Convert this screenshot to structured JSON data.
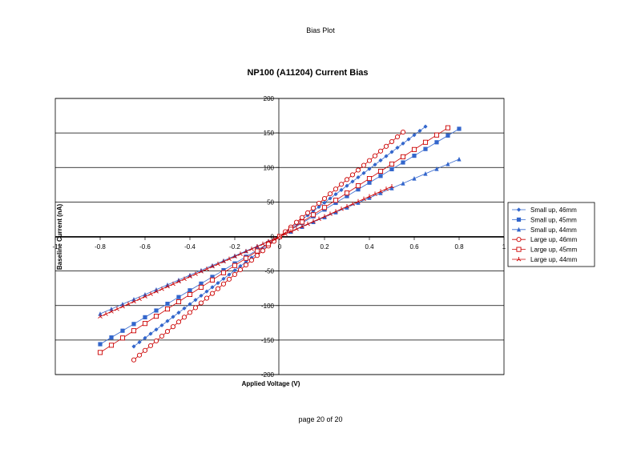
{
  "page": {
    "header": "Bias Plot",
    "footer": "page 20 of 20"
  },
  "chart_data": {
    "type": "scatter",
    "title": "NP100 (A11204) Current Bias",
    "xlabel": "Applied Voltage (V)",
    "ylabel": "Baseline Current (nA)",
    "xlim": [
      -1,
      1
    ],
    "ylim": [
      -200,
      200
    ],
    "x_ticks": [
      -1,
      -0.8,
      -0.6,
      -0.4,
      -0.2,
      0,
      0.2,
      0.4,
      0.6,
      0.8,
      1
    ],
    "x_tick_labels": [
      "-1",
      "-0.8",
      "-0.6",
      "-0.4",
      "-0.2",
      "0",
      "0.2",
      "0.4",
      "0.6",
      "0.8",
      "1"
    ],
    "y_ticks": [
      -200,
      -150,
      -100,
      -50,
      0,
      50,
      100,
      150,
      200
    ],
    "y_tick_labels": [
      "-200",
      "-150",
      "-100",
      "-50",
      "0",
      "50",
      "100",
      "150",
      "200"
    ],
    "grid": "horizontal",
    "legend_position": "right",
    "series": [
      {
        "name": "Small up, 46mm",
        "color": "#3366cc",
        "marker": "diamond",
        "slope": 245,
        "x_start": -0.65,
        "x_end": 0.65,
        "x_step": 0.025
      },
      {
        "name": "Small up, 45mm",
        "color": "#3366cc",
        "marker": "square",
        "slope": 195,
        "x_start": -0.8,
        "x_end": 0.8,
        "x_step": 0.05
      },
      {
        "name": "Small up, 44mm",
        "color": "#3366cc",
        "marker": "triangle",
        "slope": 140,
        "x_start": -0.8,
        "x_end": 0.8,
        "x_step": 0.05
      },
      {
        "name": "Large up, 46mm",
        "color": "#cc0000",
        "marker": "circle",
        "slope": 275,
        "x_start": -0.65,
        "x_end": 0.55,
        "x_step": 0.025
      },
      {
        "name": "Large up, 45mm",
        "color": "#cc0000",
        "marker": "open-square",
        "slope": 210,
        "x_start": -0.8,
        "x_end": 0.75,
        "x_step": 0.05
      },
      {
        "name": "Large up, 44mm",
        "color": "#cc0000",
        "marker": "star",
        "slope": 145,
        "x_start": -0.8,
        "x_end": 0.5,
        "x_step": 0.025
      }
    ]
  }
}
